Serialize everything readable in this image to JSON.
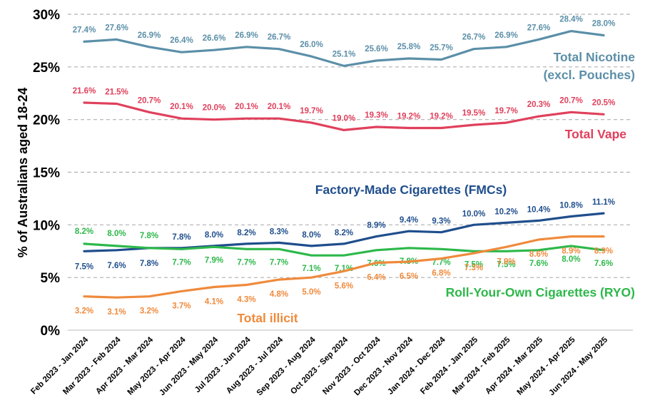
{
  "chart_data": {
    "type": "line",
    "ylabel": "% of Australians aged 18-24",
    "xlabel": "",
    "ylim": [
      0,
      30
    ],
    "yticks": [
      "0%",
      "5%",
      "10%",
      "15%",
      "20%",
      "25%",
      "30%"
    ],
    "grid": "horizontal dashed",
    "categories": [
      "Feb 2023 - Jan 2024",
      "Mar 2023 - Feb 2024",
      "Apr 2023 - Mar 2024",
      "May 2023 - Apr 2024",
      "Jun 2023 - May 2024",
      "Jul 2023 - Jun 2024",
      "Aug 2023 - Jul 2024",
      "Sep 2023 - Aug 2024",
      "Oct 2023 - Sep 2024",
      "Nov 2023 - Oct 2024",
      "Dec 2023 - Nov 2024",
      "Jan 2024 - Dec 2024",
      "Feb 2024 - Jan 2025",
      "Mar 2024 - Feb 2025",
      "Apr 2024 - Mar 2025",
      "May 2024 - Apr 2025",
      "Jun 2024 - May 2025"
    ],
    "series": [
      {
        "name": "Total Nicotine (excl. Pouches)",
        "label_lines": [
          "Total Nicotine",
          "(excl. Pouches)"
        ],
        "color": "#5b8fa8",
        "values": [
          27.4,
          27.6,
          26.9,
          26.4,
          26.6,
          26.9,
          26.7,
          26.0,
          25.1,
          25.6,
          25.8,
          25.7,
          26.7,
          26.9,
          27.6,
          28.4,
          28.0
        ],
        "value_labels": [
          "27.4%",
          "27.6%",
          "26.9%",
          "26.4%",
          "26.6%",
          "26.9%",
          "26.7%",
          "26.0%",
          "25.1%",
          "25.6%",
          "25.8%",
          "25.7%",
          "26.7%",
          "26.9%",
          "27.6%",
          "28.4%",
          "28.0%"
        ]
      },
      {
        "name": "Total Vape",
        "label_lines": [
          "Total Vape"
        ],
        "color": "#e0405c",
        "values": [
          21.6,
          21.5,
          20.7,
          20.1,
          20.0,
          20.1,
          20.1,
          19.7,
          19.0,
          19.3,
          19.2,
          19.2,
          19.5,
          19.7,
          20.3,
          20.7,
          20.5
        ],
        "value_labels": [
          "21.6%",
          "21.5%",
          "20.7%",
          "20.1%",
          "20.0%",
          "20.1%",
          "20.1%",
          "19.7%",
          "19.0%",
          "19.3%",
          "19.2%",
          "19.2%",
          "19.5%",
          "19.7%",
          "20.3%",
          "20.7%",
          "20.5%"
        ]
      },
      {
        "name": "Factory-Made Cigarettes (FMCs)",
        "label_lines": [
          "Factory-Made Cigarettes (FMCs)"
        ],
        "color": "#1f4e8c",
        "values": [
          7.5,
          7.6,
          7.8,
          7.8,
          8.0,
          8.2,
          8.3,
          8.0,
          8.2,
          8.9,
          9.4,
          9.3,
          10.0,
          10.2,
          10.4,
          10.8,
          11.1
        ],
        "value_labels": [
          "7.5%",
          "7.6%",
          "7.8%",
          "7.8%",
          "8.0%",
          "8.2%",
          "8.3%",
          "8.0%",
          "8.2%",
          "8.9%",
          "9.4%",
          "9.3%",
          "10.0%",
          "10.2%",
          "10.4%",
          "10.8%",
          "11.1%"
        ]
      },
      {
        "name": "Roll-Your-Own Cigarettes (RYO)",
        "label_lines": [
          "Roll-Your-Own Cigarettes (RYO)"
        ],
        "color": "#2db84a",
        "values": [
          8.2,
          8.0,
          7.8,
          7.7,
          7.9,
          7.7,
          7.7,
          7.1,
          7.1,
          7.6,
          7.8,
          7.7,
          7.5,
          7.5,
          7.6,
          8.0,
          7.6
        ],
        "value_labels": [
          "8.2%",
          "8.0%",
          "7.8%",
          "7.7%",
          "7.9%",
          "7.7%",
          "7.7%",
          "7.1%",
          "7.1%",
          "7.6%",
          "7.8%",
          "7.7%",
          "7.5%",
          "7.5%",
          "7.6%",
          "8.0%",
          "7.6%"
        ]
      },
      {
        "name": "Total illicit",
        "label_lines": [
          "Total illicit"
        ],
        "color": "#ef8a3c",
        "values": [
          3.2,
          3.1,
          3.2,
          3.7,
          4.1,
          4.3,
          4.8,
          5.0,
          5.6,
          6.4,
          6.5,
          6.8,
          7.3,
          7.9,
          8.6,
          8.9,
          8.9
        ],
        "value_labels": [
          "3.2%",
          "3.1%",
          "3.2%",
          "3.7%",
          "4.1%",
          "4.3%",
          "4.8%",
          "5.0%",
          "5.6%",
          "6.4%",
          "6.5%",
          "6.8%",
          "7.3%",
          "7.9%",
          "8.6%",
          "8.9%",
          "8.9%"
        ]
      }
    ]
  }
}
